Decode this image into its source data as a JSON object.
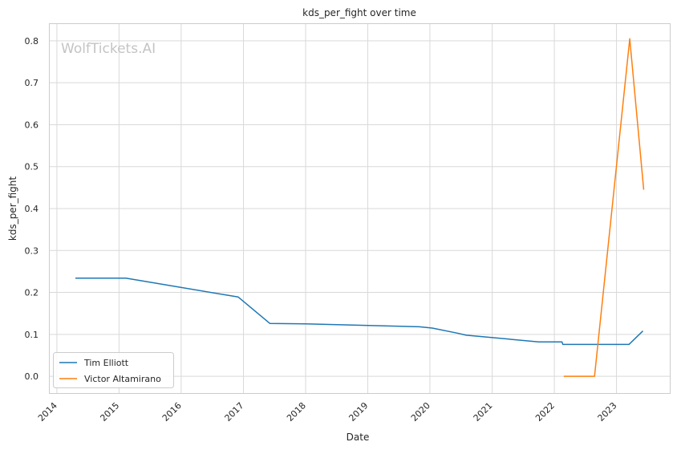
{
  "chart_data": {
    "type": "line",
    "title": "kds_per_fight over time",
    "xlabel": "Date",
    "ylabel": "kds_per_fight",
    "watermark": "WolfTickets.AI",
    "xlim": [
      "2013-11-20",
      "2023-11-10"
    ],
    "ylim": [
      -0.04,
      0.84
    ],
    "x_ticks": [
      "2014",
      "2015",
      "2016",
      "2017",
      "2018",
      "2019",
      "2020",
      "2021",
      "2022",
      "2023"
    ],
    "y_ticks": [
      "0.0",
      "0.1",
      "0.2",
      "0.3",
      "0.4",
      "0.5",
      "0.6",
      "0.7",
      "0.8"
    ],
    "grid": true,
    "legend_position": "bottom-left",
    "series": [
      {
        "name": "Tim Elliott",
        "color": "#1f77b4",
        "points": [
          [
            "2014-04-20",
            0.234
          ],
          [
            "2015-02-10",
            0.234
          ],
          [
            "2016-12-01",
            0.189
          ],
          [
            "2017-06-05",
            0.126
          ],
          [
            "2018-01-01",
            0.125
          ],
          [
            "2019-11-01",
            0.118
          ],
          [
            "2020-01-15",
            0.115
          ],
          [
            "2020-06-10",
            0.103
          ],
          [
            "2020-08-01",
            0.098
          ],
          [
            "2021-10-01",
            0.082
          ],
          [
            "2022-02-15",
            0.082
          ],
          [
            "2022-02-20",
            0.076
          ],
          [
            "2023-03-15",
            0.076
          ],
          [
            "2023-06-05",
            0.108
          ]
        ]
      },
      {
        "name": "Victor Altamirano",
        "color": "#ff7f0e",
        "points": [
          [
            "2022-02-25",
            0.0
          ],
          [
            "2022-08-25",
            0.0
          ],
          [
            "2023-03-20",
            0.805
          ],
          [
            "2023-06-10",
            0.445
          ]
        ]
      }
    ]
  }
}
